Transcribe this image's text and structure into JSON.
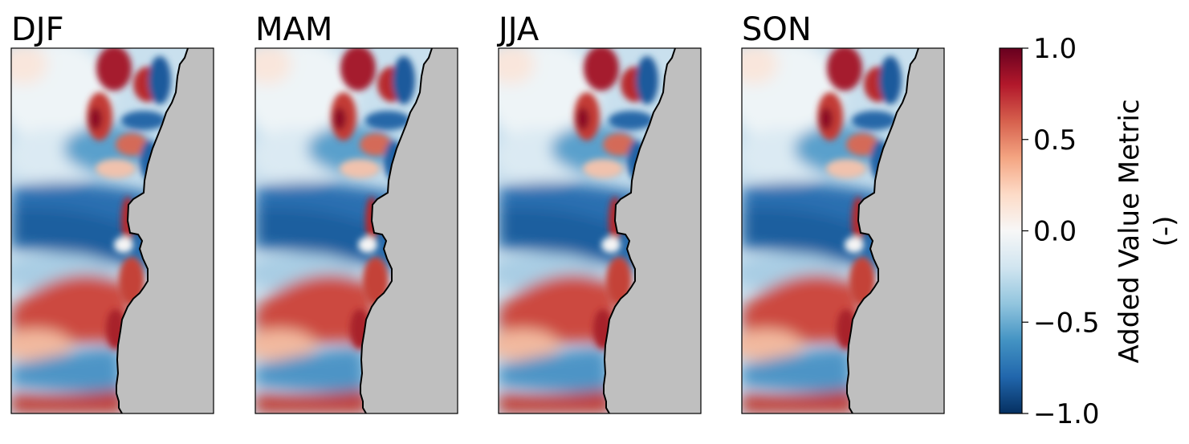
{
  "panels": [
    {
      "id": "djf",
      "title": "DJF"
    },
    {
      "id": "mam",
      "title": "MAM"
    },
    {
      "id": "jja",
      "title": "JJA"
    },
    {
      "id": "son",
      "title": "SON"
    }
  ],
  "colorbar": {
    "label_line1": "Added Value Metric",
    "label_line2": "(-)",
    "colormap": "RdBu_r",
    "range": [
      -1.0,
      1.0
    ],
    "ticks": [
      {
        "value": 1.0,
        "label": "1.0"
      },
      {
        "value": 0.5,
        "label": "0.5"
      },
      {
        "value": 0.0,
        "label": "0.0"
      },
      {
        "value": -0.5,
        "label": "−0.5"
      },
      {
        "value": -1.0,
        "label": "−1.0"
      }
    ]
  },
  "colors": {
    "land": "#bfbfbf",
    "coastline": "#000000",
    "strong_positive": "#67001f",
    "positive": "#d6604d",
    "neutral": "#f7f7f7",
    "negative": "#4393c3",
    "strong_negative": "#053061"
  }
}
